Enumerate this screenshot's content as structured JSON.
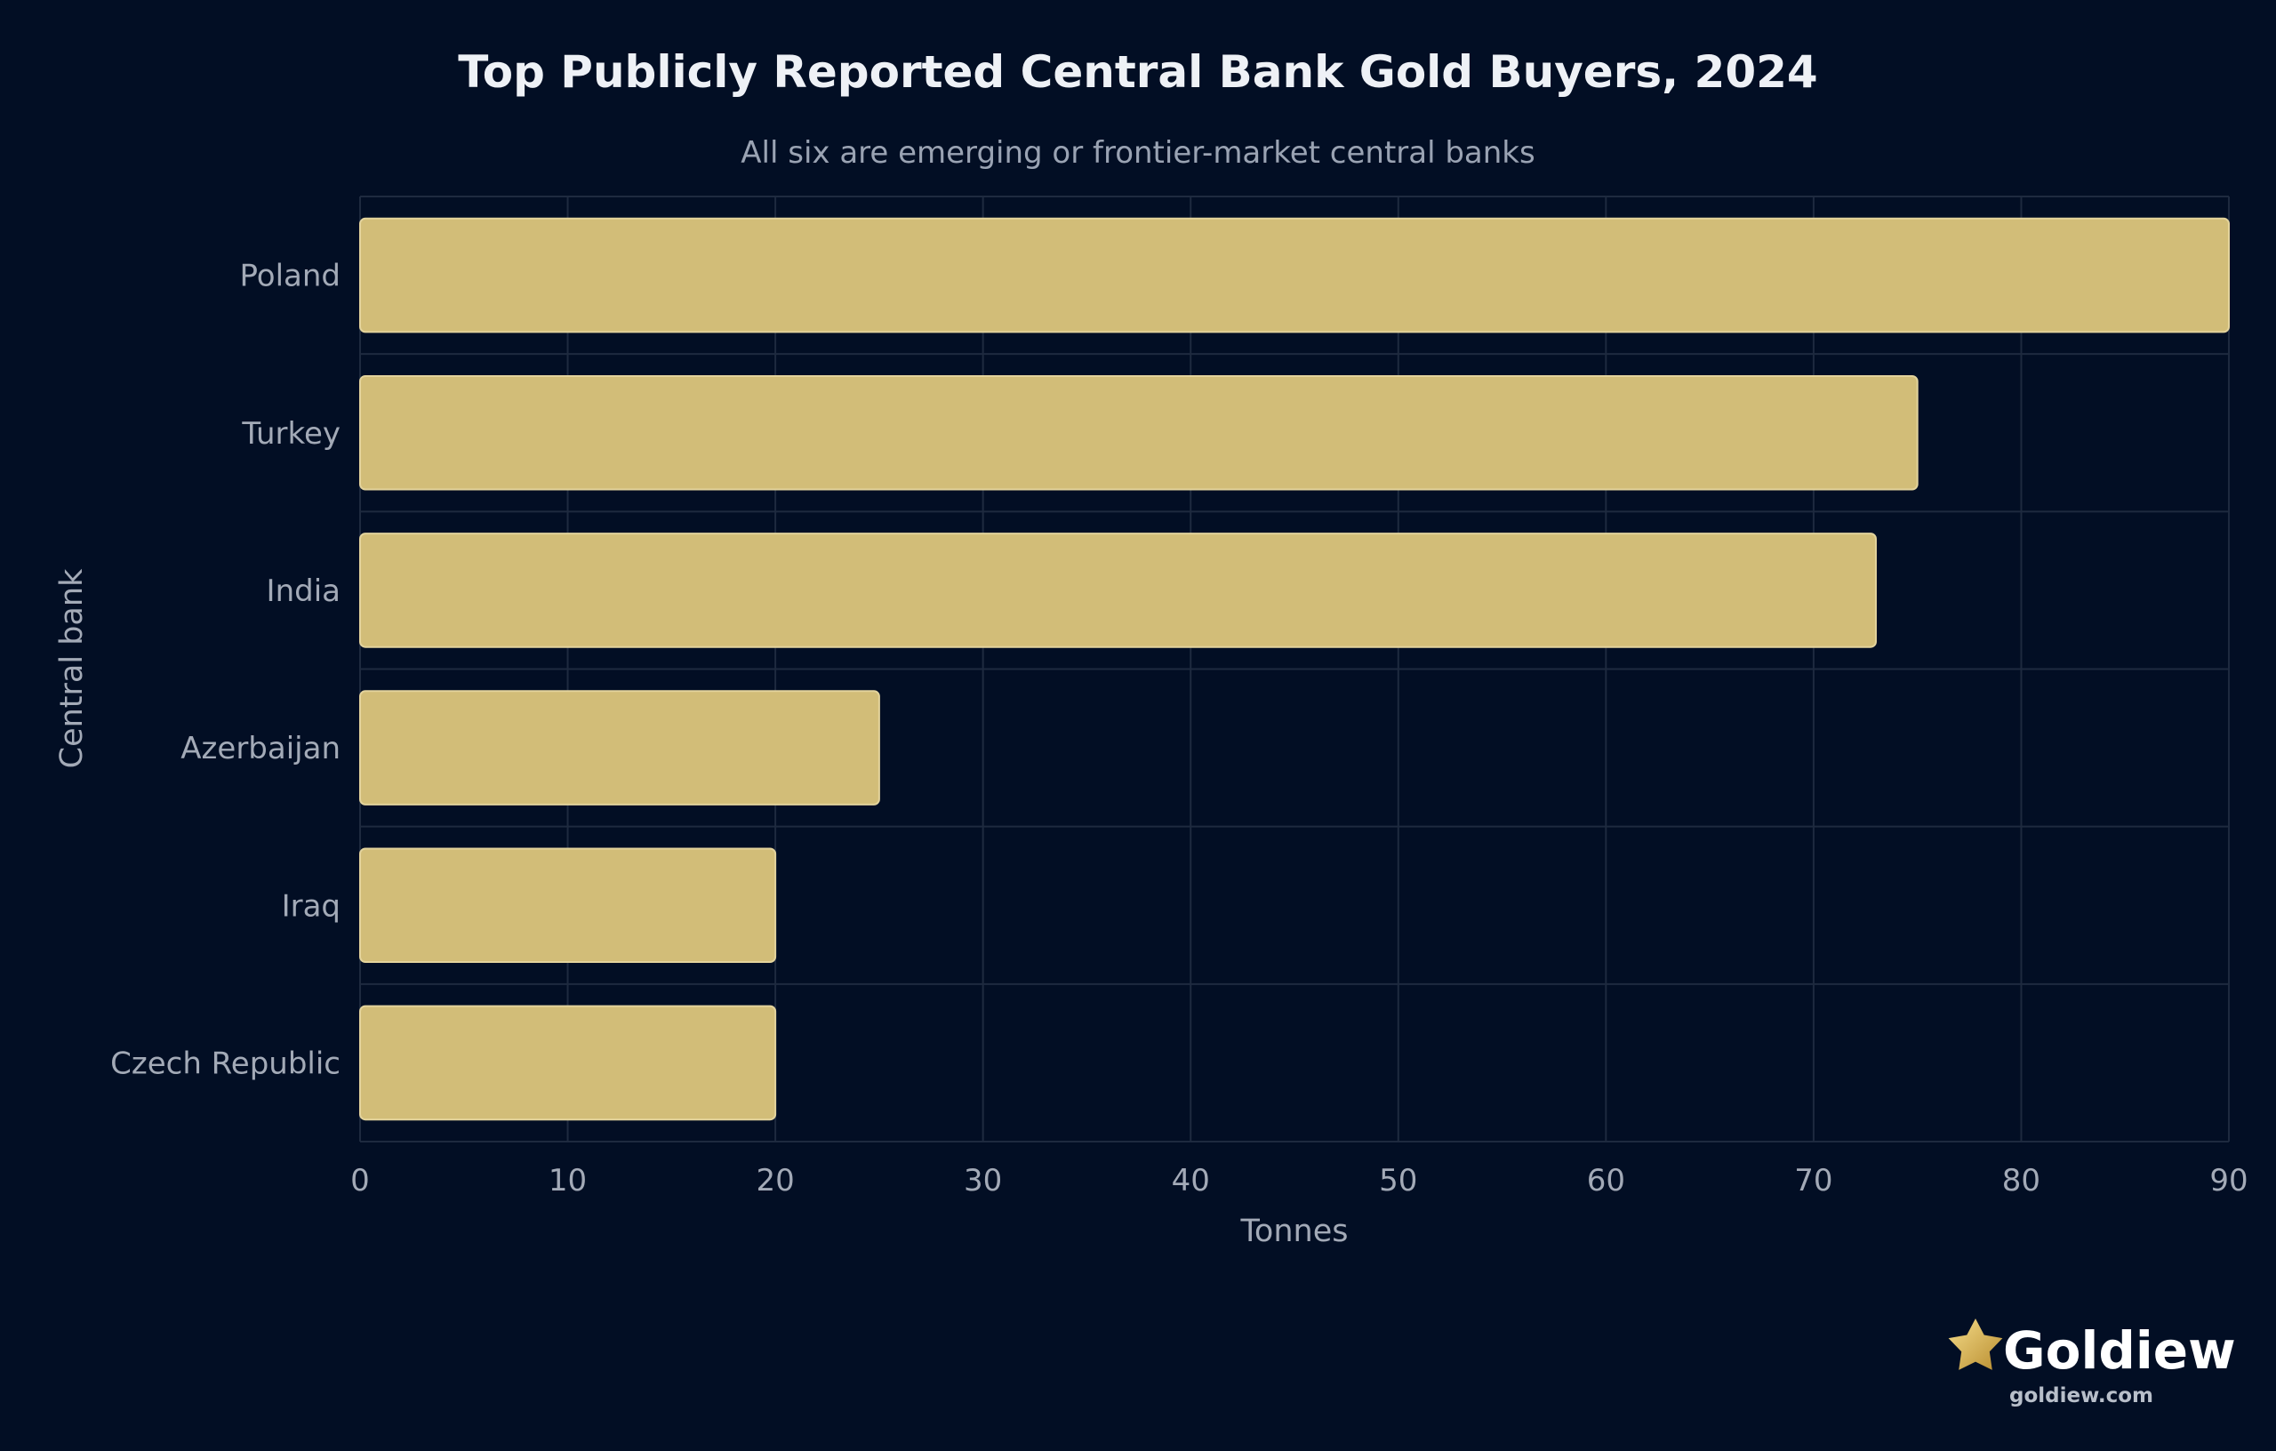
{
  "chart_data": {
    "type": "bar",
    "orientation": "horizontal",
    "title": "Top Publicly Reported Central Bank Gold Buyers, 2024",
    "subtitle": "All six are emerging or frontier-market central banks",
    "xlabel": "Tonnes",
    "ylabel": "Central bank",
    "categories": [
      "Poland",
      "Turkey",
      "India",
      "Azerbaijan",
      "Iraq",
      "Czech Republic"
    ],
    "values": [
      90,
      75,
      73,
      25,
      20,
      20
    ],
    "xlim": [
      0,
      90
    ],
    "xticks": [
      0,
      10,
      20,
      30,
      40,
      50,
      60,
      70,
      80,
      90
    ],
    "grid": true,
    "bar_color": "#d2bd78",
    "background_color": "#020e24"
  },
  "brand": {
    "name": "Goldiew",
    "url": "goldiew.com",
    "icon": "star-icon"
  }
}
